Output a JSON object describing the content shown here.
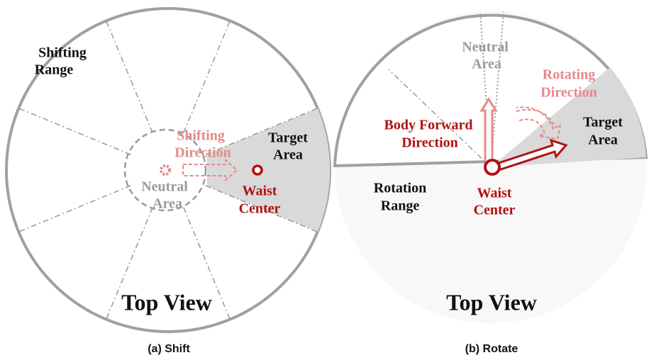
{
  "panels": [
    {
      "caption": "(a) Shift",
      "view_label": "Top View",
      "range_label": [
        "Shifting",
        "Range"
      ],
      "direction_label": [
        "Shifting",
        "Direction"
      ],
      "target_label": [
        "Target",
        "Area"
      ],
      "neutral_label": [
        "Neutral",
        "Area"
      ],
      "waist_label": [
        "Waist",
        "Center"
      ]
    },
    {
      "caption": "(b) Rotate",
      "view_label": "Top View",
      "range_label": [
        "Rotation",
        "Range"
      ],
      "direction_label": [
        "Rotating",
        "Direction"
      ],
      "forward_label": [
        "Body Forward",
        "Direction"
      ],
      "target_label": [
        "Target",
        "Area"
      ],
      "neutral_label": [
        "Neutral",
        "Area"
      ],
      "waist_label": [
        "Waist",
        "Center"
      ]
    }
  ]
}
